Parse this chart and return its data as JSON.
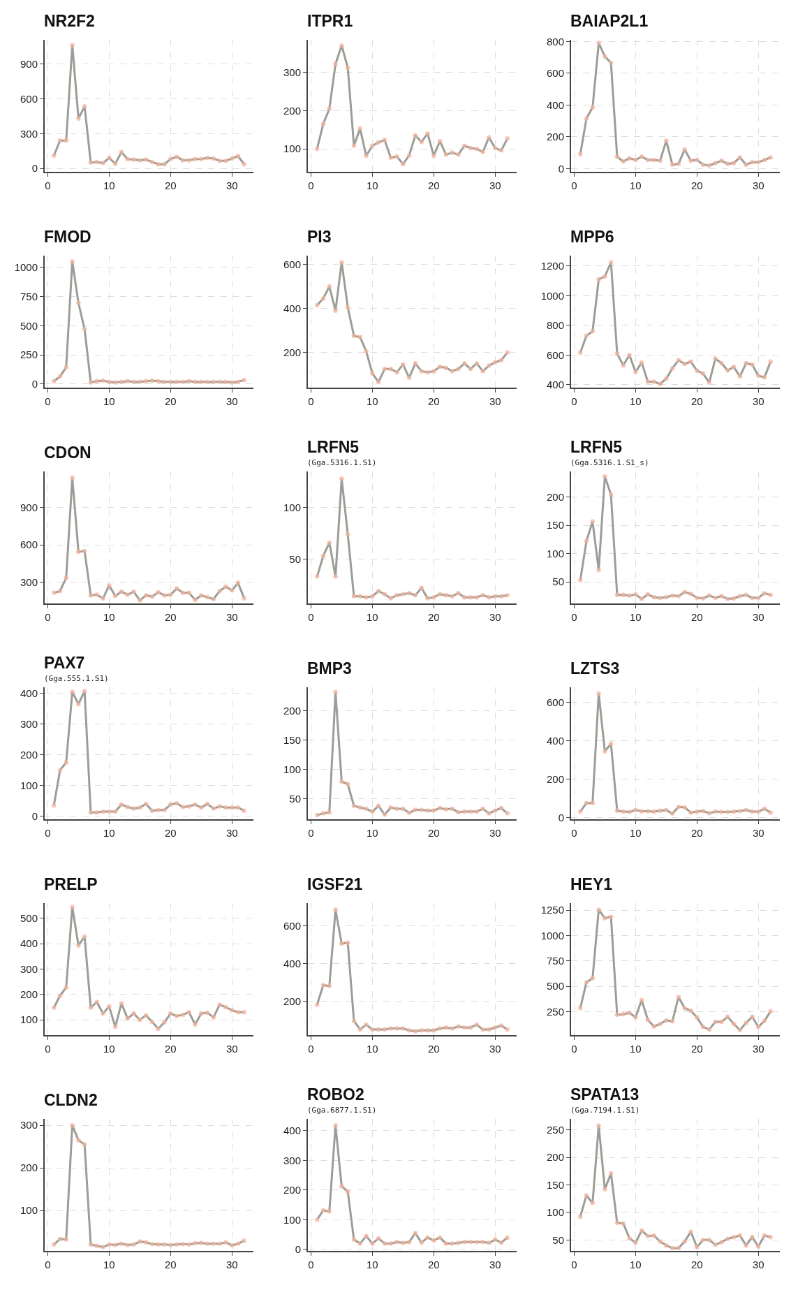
{
  "chart_data": [
    {
      "type": "line",
      "title": "NR2F2",
      "x": [
        1,
        2,
        3,
        4,
        5,
        6,
        7,
        8,
        9,
        10,
        11,
        12,
        13,
        14,
        15,
        16,
        17,
        18,
        19,
        20,
        21,
        22,
        23,
        24,
        25,
        26,
        27,
        28,
        29,
        30,
        31,
        32
      ],
      "xlim": [
        -0.5,
        33.5
      ],
      "xticks": [
        0,
        10,
        20,
        30
      ],
      "ylim": [
        -30,
        1110
      ],
      "yticks": [
        0,
        300,
        600,
        900
      ],
      "marker": "circle",
      "grid": true,
      "series": [
        {
          "color": "#f4b49c",
          "values": [
            110,
            240,
            240,
            1065,
            430,
            535,
            50,
            55,
            45,
            90,
            40,
            140,
            80,
            75,
            70,
            75,
            55,
            35,
            35,
            80,
            100,
            70,
            70,
            80,
            80,
            90,
            85,
            65,
            65,
            85,
            105,
            35
          ]
        }
      ]
    },
    {
      "type": "line",
      "title": "ITPR1",
      "x": [
        1,
        2,
        3,
        4,
        5,
        6,
        7,
        8,
        9,
        10,
        11,
        12,
        13,
        14,
        15,
        16,
        17,
        18,
        19,
        20,
        21,
        22,
        23,
        24,
        25,
        26,
        27,
        28,
        29,
        30,
        31,
        32
      ],
      "xlim": [
        -0.5,
        33.5
      ],
      "xticks": [
        0,
        10,
        20,
        30
      ],
      "ylim": [
        40,
        385
      ],
      "yticks": [
        100,
        200,
        300
      ],
      "marker": "circle",
      "grid": true,
      "series": [
        {
          "color": "#f4b49c",
          "values": [
            100,
            165,
            205,
            322,
            370,
            312,
            108,
            153,
            82,
            108,
            117,
            123,
            77,
            80,
            60,
            83,
            135,
            118,
            140,
            82,
            120,
            85,
            90,
            85,
            108,
            102,
            100,
            92,
            130,
            102,
            96,
            127
          ]
        }
      ]
    },
    {
      "type": "line",
      "title": "BAIAP2L1",
      "x": [
        1,
        2,
        3,
        4,
        5,
        6,
        7,
        8,
        9,
        10,
        11,
        12,
        13,
        14,
        15,
        16,
        17,
        18,
        19,
        20,
        21,
        22,
        23,
        24,
        25,
        26,
        27,
        28,
        29,
        30,
        31,
        32
      ],
      "xlim": [
        -0.5,
        33.5
      ],
      "xticks": [
        0,
        10,
        20,
        30
      ],
      "ylim": [
        -20,
        810
      ],
      "yticks": [
        0,
        200,
        400,
        600,
        800
      ],
      "marker": "circle",
      "grid": true,
      "series": [
        {
          "color": "#f4b49c",
          "values": [
            90,
            315,
            385,
            790,
            705,
            665,
            75,
            45,
            65,
            55,
            75,
            55,
            55,
            50,
            175,
            25,
            30,
            120,
            50,
            55,
            25,
            20,
            35,
            50,
            30,
            35,
            70,
            25,
            40,
            40,
            55,
            70
          ]
        }
      ]
    },
    {
      "type": "line",
      "title": "FMOD",
      "x": [
        1,
        2,
        3,
        4,
        5,
        6,
        7,
        8,
        9,
        10,
        11,
        12,
        13,
        14,
        15,
        16,
        17,
        18,
        19,
        20,
        21,
        22,
        23,
        24,
        25,
        26,
        27,
        28,
        29,
        30,
        31,
        32
      ],
      "xlim": [
        -0.5,
        33.5
      ],
      "xticks": [
        0,
        10,
        20,
        30
      ],
      "ylim": [
        -30,
        1100
      ],
      "yticks": [
        0,
        250,
        500,
        750,
        1000
      ],
      "marker": "circle",
      "grid": true,
      "series": [
        {
          "color": "#f4b49c",
          "values": [
            25,
            65,
            145,
            1050,
            695,
            470,
            15,
            25,
            30,
            20,
            15,
            20,
            25,
            20,
            20,
            25,
            30,
            25,
            20,
            20,
            20,
            20,
            25,
            20,
            20,
            20,
            20,
            20,
            20,
            15,
            20,
            35
          ]
        }
      ]
    },
    {
      "type": "line",
      "title": "PI3",
      "x": [
        1,
        2,
        3,
        4,
        5,
        6,
        7,
        8,
        9,
        10,
        11,
        12,
        13,
        14,
        15,
        16,
        17,
        18,
        19,
        20,
        21,
        22,
        23,
        24,
        25,
        26,
        27,
        28,
        29,
        30,
        31,
        32
      ],
      "xlim": [
        -0.5,
        33.5
      ],
      "xticks": [
        0,
        10,
        20,
        30
      ],
      "ylim": [
        40,
        640
      ],
      "yticks": [
        200,
        400,
        600
      ],
      "marker": "circle",
      "grid": true,
      "series": [
        {
          "color": "#f4b49c",
          "values": [
            415,
            445,
            500,
            390,
            610,
            405,
            275,
            270,
            205,
            105,
            65,
            125,
            125,
            110,
            145,
            85,
            150,
            115,
            110,
            115,
            135,
            130,
            115,
            125,
            150,
            125,
            150,
            115,
            140,
            155,
            165,
            200
          ]
        }
      ]
    },
    {
      "type": "line",
      "title": "MPP6",
      "x": [
        1,
        2,
        3,
        4,
        5,
        6,
        7,
        8,
        9,
        10,
        11,
        12,
        13,
        14,
        15,
        16,
        17,
        18,
        19,
        20,
        21,
        22,
        23,
        24,
        25,
        26,
        27,
        28,
        29,
        30,
        31,
        32
      ],
      "xlim": [
        -0.5,
        33.5
      ],
      "xticks": [
        0,
        10,
        20,
        30
      ],
      "ylim": [
        380,
        1270
      ],
      "yticks": [
        400,
        600,
        800,
        1000,
        1200
      ],
      "marker": "circle",
      "grid": true,
      "series": [
        {
          "color": "#f4b49c",
          "values": [
            615,
            730,
            760,
            1110,
            1130,
            1225,
            610,
            530,
            600,
            485,
            550,
            420,
            420,
            405,
            440,
            510,
            565,
            540,
            555,
            495,
            475,
            415,
            575,
            545,
            495,
            520,
            455,
            545,
            535,
            460,
            450,
            555
          ]
        }
      ]
    },
    {
      "type": "line",
      "title": "CDON",
      "x": [
        1,
        2,
        3,
        4,
        5,
        6,
        7,
        8,
        9,
        10,
        11,
        12,
        13,
        14,
        15,
        16,
        17,
        18,
        19,
        20,
        21,
        22,
        23,
        24,
        25,
        26,
        27,
        28,
        29,
        30,
        31,
        32
      ],
      "xlim": [
        -0.5,
        33.5
      ],
      "xticks": [
        0,
        10,
        20,
        30
      ],
      "ylim": [
        130,
        1190
      ],
      "yticks": [
        300,
        600,
        900
      ],
      "marker": "circle",
      "grid": true,
      "series": [
        {
          "color": "#f4b49c",
          "values": [
            215,
            230,
            335,
            1140,
            545,
            550,
            195,
            200,
            170,
            275,
            190,
            225,
            200,
            225,
            155,
            195,
            185,
            220,
            195,
            200,
            250,
            215,
            215,
            160,
            195,
            180,
            165,
            230,
            265,
            235,
            295,
            170
          ]
        }
      ]
    },
    {
      "type": "line",
      "title": "LRFN5",
      "subtitle": "(Gga.5316.1.S1)",
      "x": [
        1,
        2,
        3,
        4,
        5,
        6,
        7,
        8,
        9,
        10,
        11,
        12,
        13,
        14,
        15,
        16,
        17,
        18,
        19,
        20,
        21,
        22,
        23,
        24,
        25,
        26,
        27,
        28,
        29,
        30,
        31,
        32
      ],
      "xlim": [
        -0.5,
        33.5
      ],
      "xticks": [
        0,
        10,
        20,
        30
      ],
      "ylim": [
        7,
        135
      ],
      "yticks": [
        50,
        100
      ],
      "marker": "circle",
      "grid": true,
      "series": [
        {
          "color": "#f4b49c",
          "values": [
            33,
            53,
            66,
            33,
            128,
            74,
            14,
            14,
            13,
            14,
            19,
            16,
            12,
            15,
            16,
            17,
            15,
            22,
            12,
            13,
            16,
            15,
            14,
            17,
            13,
            13,
            13,
            15,
            13,
            14,
            14,
            15
          ]
        }
      ]
    },
    {
      "type": "line",
      "title": "LRFN5",
      "subtitle": "(Gga.5316.1.S1_s)",
      "x": [
        1,
        2,
        3,
        4,
        5,
        6,
        7,
        8,
        9,
        10,
        11,
        12,
        13,
        14,
        15,
        16,
        17,
        18,
        19,
        20,
        21,
        22,
        23,
        24,
        25,
        26,
        27,
        28,
        29,
        30,
        31,
        32
      ],
      "xlim": [
        -0.5,
        33.5
      ],
      "xticks": [
        0,
        10,
        20,
        30
      ],
      "ylim": [
        12,
        245
      ],
      "yticks": [
        50,
        100,
        150,
        200
      ],
      "marker": "circle",
      "grid": true,
      "series": [
        {
          "color": "#f4b49c",
          "values": [
            53,
            122,
            157,
            71,
            236,
            204,
            27,
            27,
            26,
            28,
            20,
            28,
            23,
            22,
            23,
            26,
            25,
            32,
            29,
            22,
            21,
            26,
            22,
            25,
            20,
            21,
            25,
            27,
            22,
            22,
            30,
            27
          ]
        }
      ]
    },
    {
      "type": "line",
      "title": "PAX7",
      "subtitle": "(Gga.555.1.S1)",
      "x": [
        1,
        2,
        3,
        4,
        5,
        6,
        7,
        8,
        9,
        10,
        11,
        12,
        13,
        14,
        15,
        16,
        17,
        18,
        19,
        20,
        21,
        22,
        23,
        24,
        25,
        26,
        27,
        28,
        29,
        30,
        31,
        32
      ],
      "xlim": [
        -0.5,
        33.5
      ],
      "xticks": [
        0,
        10,
        20,
        30
      ],
      "ylim": [
        -10,
        420
      ],
      "yticks": [
        0,
        100,
        200,
        300,
        400
      ],
      "marker": "circle",
      "grid": true,
      "series": [
        {
          "color": "#f4b49c",
          "values": [
            35,
            150,
            175,
            405,
            365,
            408,
            12,
            12,
            15,
            15,
            15,
            38,
            30,
            25,
            28,
            40,
            18,
            20,
            20,
            38,
            42,
            30,
            32,
            38,
            28,
            40,
            25,
            32,
            28,
            28,
            28,
            18
          ]
        }
      ]
    },
    {
      "type": "line",
      "title": "BMP3",
      "x": [
        1,
        2,
        3,
        4,
        5,
        6,
        7,
        8,
        9,
        10,
        11,
        12,
        13,
        14,
        15,
        16,
        17,
        18,
        19,
        20,
        21,
        22,
        23,
        24,
        25,
        26,
        27,
        28,
        29,
        30,
        31,
        32
      ],
      "xlim": [
        -0.5,
        33.5
      ],
      "xticks": [
        0,
        10,
        20,
        30
      ],
      "ylim": [
        15,
        240
      ],
      "yticks": [
        50,
        100,
        150,
        200
      ],
      "marker": "circle",
      "grid": true,
      "series": [
        {
          "color": "#f4b49c",
          "values": [
            22,
            25,
            27,
            232,
            79,
            75,
            38,
            35,
            33,
            28,
            38,
            23,
            35,
            33,
            33,
            26,
            31,
            31,
            30,
            30,
            34,
            32,
            33,
            27,
            28,
            28,
            28,
            33,
            25,
            30,
            34,
            25
          ]
        }
      ]
    },
    {
      "type": "line",
      "title": "LZTS3",
      "x": [
        1,
        2,
        3,
        4,
        5,
        6,
        7,
        8,
        9,
        10,
        11,
        12,
        13,
        14,
        15,
        16,
        17,
        18,
        19,
        20,
        21,
        22,
        23,
        24,
        25,
        26,
        27,
        28,
        29,
        30,
        31,
        32
      ],
      "xlim": [
        -0.5,
        33.5
      ],
      "xticks": [
        0,
        10,
        20,
        30
      ],
      "ylim": [
        -10,
        680
      ],
      "yticks": [
        0,
        200,
        400,
        600
      ],
      "marker": "circle",
      "grid": true,
      "series": [
        {
          "color": "#f4b49c",
          "values": [
            30,
            75,
            75,
            648,
            345,
            385,
            35,
            30,
            28,
            38,
            32,
            32,
            30,
            35,
            38,
            20,
            55,
            52,
            25,
            30,
            33,
            22,
            30,
            28,
            28,
            30,
            33,
            38,
            30,
            30,
            45,
            25
          ]
        }
      ]
    },
    {
      "type": "line",
      "title": "PRELP",
      "x": [
        1,
        2,
        3,
        4,
        5,
        6,
        7,
        8,
        9,
        10,
        11,
        12,
        13,
        14,
        15,
        16,
        17,
        18,
        19,
        20,
        21,
        22,
        23,
        24,
        25,
        26,
        27,
        28,
        29,
        30,
        31,
        32
      ],
      "xlim": [
        -0.5,
        33.5
      ],
      "xticks": [
        0,
        10,
        20,
        30
      ],
      "ylim": [
        40,
        560
      ],
      "yticks": [
        100,
        200,
        300,
        400,
        500
      ],
      "marker": "circle",
      "grid": true,
      "series": [
        {
          "color": "#f4b49c",
          "values": [
            148,
            195,
            228,
            545,
            393,
            428,
            148,
            170,
            125,
            153,
            72,
            165,
            105,
            125,
            100,
            118,
            92,
            65,
            90,
            125,
            115,
            120,
            130,
            82,
            125,
            128,
            110,
            160,
            150,
            138,
            130,
            130
          ]
        }
      ]
    },
    {
      "type": "line",
      "title": "IGSF21",
      "x": [
        1,
        2,
        3,
        4,
        5,
        6,
        7,
        8,
        9,
        10,
        11,
        12,
        13,
        14,
        15,
        16,
        17,
        18,
        19,
        20,
        21,
        22,
        23,
        24,
        25,
        26,
        27,
        28,
        29,
        30,
        31,
        32
      ],
      "xlim": [
        -0.5,
        33.5
      ],
      "xticks": [
        0,
        10,
        20,
        30
      ],
      "ylim": [
        20,
        720
      ],
      "yticks": [
        200,
        400,
        600
      ],
      "marker": "circle",
      "grid": true,
      "series": [
        {
          "color": "#f4b49c",
          "values": [
            180,
            285,
            280,
            685,
            505,
            510,
            95,
            50,
            75,
            50,
            50,
            50,
            55,
            55,
            55,
            45,
            40,
            45,
            45,
            45,
            55,
            60,
            55,
            65,
            60,
            60,
            75,
            50,
            50,
            60,
            70,
            50
          ]
        }
      ]
    },
    {
      "type": "line",
      "title": "HEY1",
      "x": [
        1,
        2,
        3,
        4,
        5,
        6,
        7,
        8,
        9,
        10,
        11,
        12,
        13,
        14,
        15,
        16,
        17,
        18,
        19,
        20,
        21,
        22,
        23,
        24,
        25,
        26,
        27,
        28,
        29,
        30,
        31,
        32
      ],
      "xlim": [
        -0.5,
        33.5
      ],
      "xticks": [
        0,
        10,
        20,
        30
      ],
      "ylim": [
        20,
        1320
      ],
      "yticks": [
        250,
        500,
        750,
        1000,
        1250
      ],
      "marker": "circle",
      "grid": true,
      "series": [
        {
          "color": "#f4b49c",
          "values": [
            285,
            540,
            580,
            1255,
            1170,
            1185,
            220,
            225,
            240,
            195,
            365,
            170,
            105,
            130,
            165,
            155,
            395,
            285,
            260,
            195,
            100,
            75,
            150,
            150,
            200,
            130,
            70,
            140,
            200,
            100,
            160,
            255
          ]
        }
      ]
    },
    {
      "type": "line",
      "title": "CLDN2",
      "x": [
        1,
        2,
        3,
        4,
        5,
        6,
        7,
        8,
        9,
        10,
        11,
        12,
        13,
        14,
        15,
        16,
        17,
        18,
        19,
        20,
        21,
        22,
        23,
        24,
        25,
        26,
        27,
        28,
        29,
        30,
        31,
        32
      ],
      "xlim": [
        -0.5,
        33.5
      ],
      "xticks": [
        0,
        10,
        20,
        30
      ],
      "ylim": [
        5,
        315
      ],
      "yticks": [
        100,
        200,
        300
      ],
      "marker": "circle",
      "grid": true,
      "series": [
        {
          "color": "#f4b49c",
          "values": [
            20,
            33,
            32,
            300,
            265,
            255,
            20,
            17,
            14,
            20,
            19,
            22,
            19,
            20,
            27,
            25,
            21,
            20,
            20,
            19,
            20,
            21,
            20,
            23,
            24,
            22,
            22,
            22,
            25,
            18,
            22,
            29
          ]
        }
      ]
    },
    {
      "type": "line",
      "title": "ROBO2",
      "subtitle": "(Gga.6877.1.S1)",
      "x": [
        1,
        2,
        3,
        4,
        5,
        6,
        7,
        8,
        9,
        10,
        11,
        12,
        13,
        14,
        15,
        16,
        17,
        18,
        19,
        20,
        21,
        22,
        23,
        24,
        25,
        26,
        27,
        28,
        29,
        30,
        31,
        32
      ],
      "xlim": [
        -0.5,
        33.5
      ],
      "xticks": [
        0,
        10,
        20,
        30
      ],
      "ylim": [
        -5,
        440
      ],
      "yticks": [
        0,
        100,
        200,
        300,
        400
      ],
      "marker": "circle",
      "grid": true,
      "series": [
        {
          "color": "#f4b49c",
          "values": [
            100,
            132,
            128,
            418,
            213,
            195,
            33,
            20,
            45,
            20,
            37,
            20,
            20,
            25,
            22,
            25,
            55,
            23,
            40,
            30,
            40,
            20,
            20,
            22,
            25,
            25,
            25,
            25,
            22,
            33,
            23,
            40
          ]
        }
      ]
    },
    {
      "type": "line",
      "title": "SPATA13",
      "subtitle": "(Gga.7194.1.S1)",
      "x": [
        1,
        2,
        3,
        4,
        5,
        6,
        7,
        8,
        9,
        10,
        11,
        12,
        13,
        14,
        15,
        16,
        17,
        18,
        19,
        20,
        21,
        22,
        23,
        24,
        25,
        26,
        27,
        28,
        29,
        30,
        31,
        32
      ],
      "xlim": [
        -0.5,
        33.5
      ],
      "xticks": [
        0,
        10,
        20,
        30
      ],
      "ylim": [
        30,
        270
      ],
      "yticks": [
        50,
        100,
        150,
        200,
        250
      ],
      "marker": "circle",
      "grid": true,
      "series": [
        {
          "color": "#f4b49c",
          "values": [
            92,
            131,
            117,
            258,
            142,
            171,
            81,
            80,
            53,
            45,
            67,
            57,
            58,
            47,
            40,
            35,
            35,
            47,
            65,
            37,
            50,
            50,
            41,
            46,
            52,
            55,
            58,
            40,
            55,
            38,
            58,
            55
          ]
        }
      ]
    }
  ]
}
